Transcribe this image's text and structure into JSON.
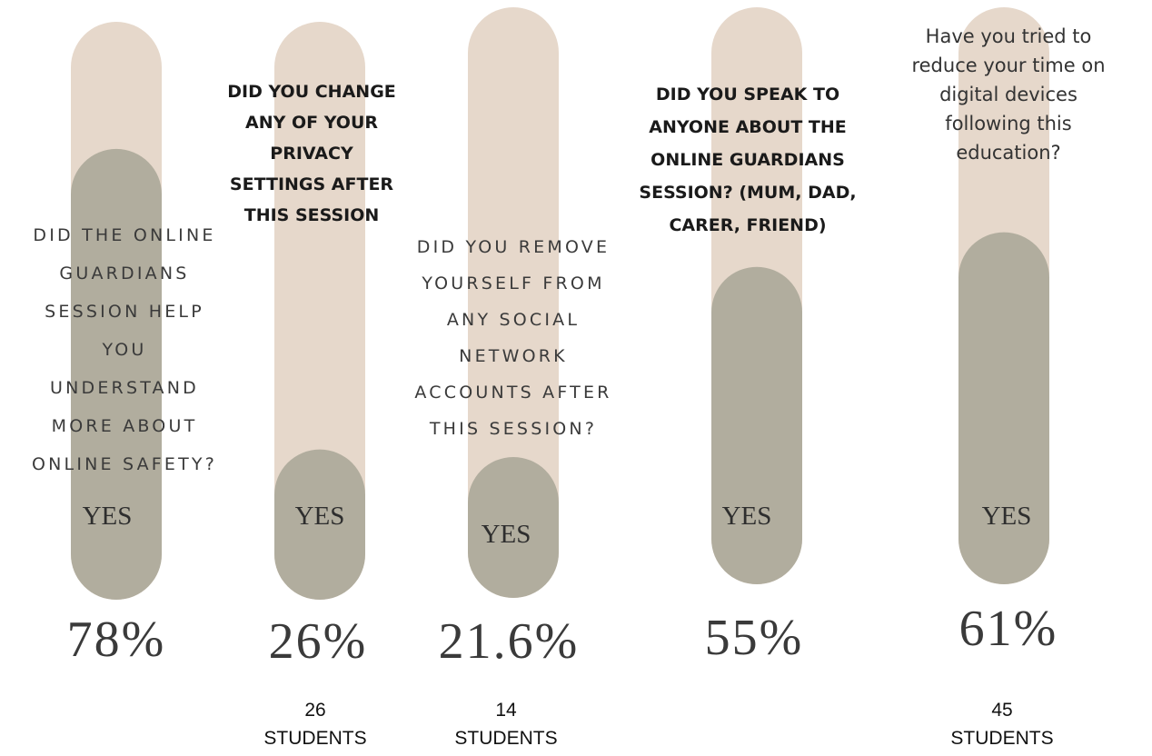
{
  "colors": {
    "track": "#e6d8cb",
    "fill": "#b1ad9e",
    "text": "#333333"
  },
  "chart_data": {
    "type": "bar",
    "orientation": "vertical-progress-pills",
    "ylim": [
      0,
      100
    ],
    "unit": "%",
    "categories": [
      "DID THE ONLINE GUARDIANS SESSION HELP YOU UNDERSTAND MORE ABOUT ONLINE SAFETY?",
      "DID YOU CHANGE ANY OF YOUR PRIVACY SETTINGS AFTER THIS SESSION",
      "DID YOU REMOVE YOURSELF FROM ANY SOCIAL NETWORK ACCOUNTS AFTER THIS SESSION?",
      "DID YOU SPEAK TO ANYONE ABOUT THE ONLINE GUARDIANS SESSION? (MUM, DAD, CARER, FRIEND)",
      "Have you tried to reduce your time on digital devices following this education?"
    ],
    "values": [
      78,
      26,
      21.6,
      55,
      61
    ],
    "bars": [
      {
        "question_lines": [
          "DID THE ONLINE",
          "GUARDIANS",
          "SESSION HELP",
          "YOU",
          "UNDERSTAND",
          "MORE ABOUT",
          "ONLINE SAFETY?"
        ],
        "question_style": "spaced",
        "answer": "YES",
        "value": 78,
        "value_label": "78%",
        "count_number": "",
        "count_unit": ""
      },
      {
        "question_lines": [
          "DID YOU CHANGE",
          "ANY OF YOUR",
          "PRIVACY",
          "SETTINGS AFTER",
          "THIS SESSION"
        ],
        "question_style": "bold",
        "answer": "YES",
        "value": 26,
        "value_label": "26%",
        "count_number": "26",
        "count_unit": "STUDENTS"
      },
      {
        "question_lines": [
          "DID YOU REMOVE",
          "YOURSELF FROM",
          "ANY SOCIAL",
          "NETWORK",
          "ACCOUNTS AFTER",
          "THIS SESSION?"
        ],
        "question_style": "spaced",
        "answer": "YES",
        "value": 21.6,
        "value_label": "21.6%",
        "count_number": "14",
        "count_unit": "STUDENTS"
      },
      {
        "question_lines": [
          "DID YOU SPEAK TO",
          "ANYONE ABOUT THE",
          "ONLINE GUARDIANS",
          "SESSION? (MUM, DAD,",
          "CARER, FRIEND)"
        ],
        "question_style": "bold",
        "answer": "YES",
        "value": 55,
        "value_label": "55%",
        "count_number": "",
        "count_unit": ""
      },
      {
        "question_lines": [
          "Have you tried to",
          "reduce your time on",
          "digital devices",
          "following this",
          "education?"
        ],
        "question_style": "plain",
        "answer": "YES",
        "value": 61,
        "value_label": "61%",
        "count_number": "45",
        "count_unit": "STUDENTS"
      }
    ]
  }
}
